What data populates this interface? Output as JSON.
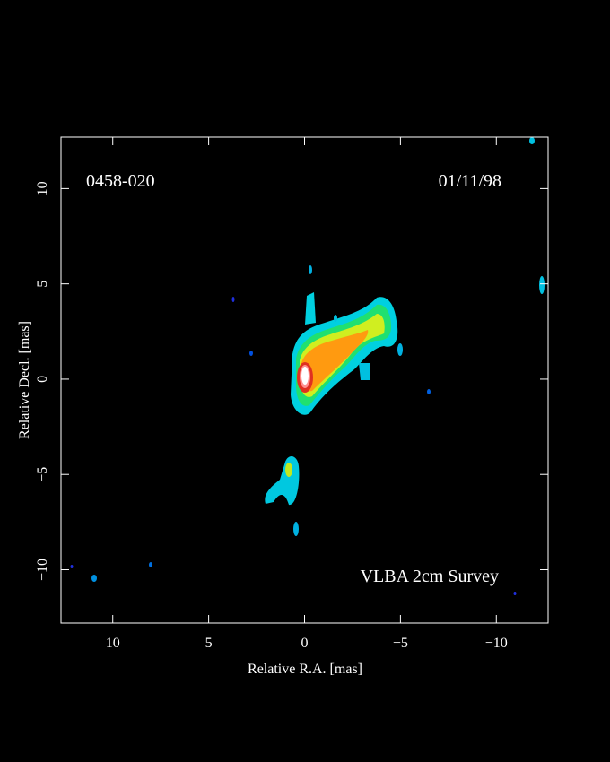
{
  "chart_data": {
    "type": "image",
    "annotations": [
      "0458-020",
      "01/11/98",
      "VLBA 2cm Survey"
    ],
    "xlabel": "Relative R.A. [mas]",
    "ylabel": "Relative Decl. [mas]",
    "xlim": [
      12.7,
      -12.7
    ],
    "ylim": [
      -12.8,
      12.7
    ],
    "xticks": [
      10,
      5,
      0,
      {
        "value": -5,
        "label": "−5"
      },
      {
        "value": -10,
        "label": "−10"
      }
    ],
    "yticks": [
      {
        "value": -10,
        "label": "−10"
      },
      {
        "value": -5,
        "label": "−5"
      },
      0,
      5,
      10
    ]
  }
}
